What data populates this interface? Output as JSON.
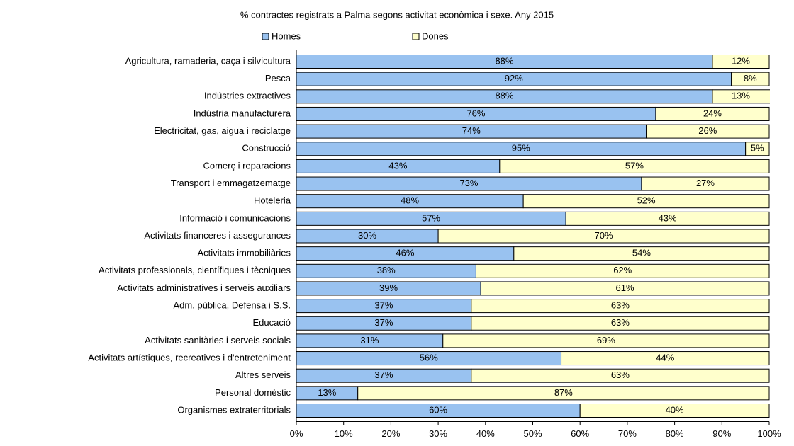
{
  "chart_data": {
    "type": "stacked_barh",
    "title": "% contractes registrats a Palma segons activitat econòmica i sexe. Any 2015",
    "categories": [
      "Agricultura, ramaderia, caça i silvicultura",
      "Pesca",
      "Indústries extractives",
      "Indústria manufacturera",
      "Electricitat, gas, aigua i reciclatge",
      "Construcció",
      "Comerç i reparacions",
      "Transport i emmagatzematge",
      "Hoteleria",
      "Informació i comunicacions",
      "Activitats financeres i assegurances",
      "Activitats immobiliàries",
      "Activitats professionals, científiques i tècniques",
      "Activitats administratives i serveis auxiliars",
      "Adm. pública, Defensa i S.S.",
      "Educació",
      "Activitats sanitàries i serveis socials",
      "Activitats artístiques, recreatives i d'entreteniment",
      "Altres serveis",
      "Personal domèstic",
      "Organismes extraterritorials"
    ],
    "series": [
      {
        "name": "Homes",
        "color": "#99c2f0",
        "values": [
          88,
          92,
          88,
          76,
          74,
          95,
          43,
          73,
          48,
          57,
          30,
          46,
          38,
          39,
          37,
          37,
          31,
          56,
          37,
          13,
          60
        ],
        "value_labels": [
          "88%",
          "92%",
          "88%",
          "76%",
          "74%",
          "95%",
          "43%",
          "73%",
          "48%",
          "57%",
          "30%",
          "46%",
          "38%",
          "39%",
          "37%",
          "37%",
          "31%",
          "56%",
          "37%",
          "13%",
          "60%"
        ]
      },
      {
        "name": "Dones",
        "color": "#ffffcc",
        "values": [
          12,
          8,
          13,
          24,
          26,
          5,
          57,
          27,
          52,
          43,
          70,
          54,
          62,
          61,
          63,
          63,
          69,
          44,
          63,
          87,
          40
        ],
        "value_labels": [
          "12%",
          "8%",
          "13%",
          "24%",
          "26%",
          "5%",
          "57%",
          "27%",
          "52%",
          "43%",
          "70%",
          "54%",
          "62%",
          "61%",
          "63%",
          "63%",
          "69%",
          "44%",
          "63%",
          "87%",
          "40%"
        ]
      }
    ],
    "xlim": [
      0,
      100
    ],
    "xticks": [
      {
        "value": 0,
        "label": "0%"
      },
      {
        "value": 10,
        "label": "10%"
      },
      {
        "value": 20,
        "label": "20%"
      },
      {
        "value": 30,
        "label": "30%"
      },
      {
        "value": 40,
        "label": "40%"
      },
      {
        "value": 50,
        "label": "50%"
      },
      {
        "value": 60,
        "label": "60%"
      },
      {
        "value": 70,
        "label": "70%"
      },
      {
        "value": 80,
        "label": "80%"
      },
      {
        "value": 90,
        "label": "90%"
      },
      {
        "value": 100,
        "label": "100%"
      }
    ],
    "legend": "top"
  }
}
